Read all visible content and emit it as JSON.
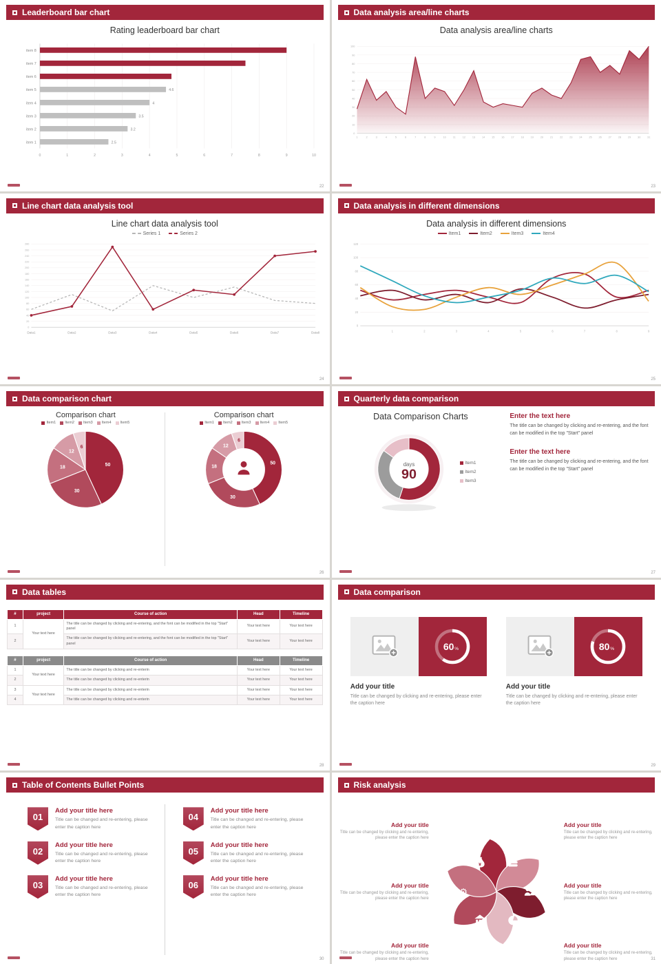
{
  "theme": {
    "accent": "#A2263B",
    "accent_dark": "#7E1D2E",
    "bar_gray": "#BFBFBF",
    "table_gray": "#8A8A8A",
    "orange": "#E8A23B",
    "teal": "#2FA8BC"
  },
  "slides": {
    "leaderboard": {
      "header": "Leaderboard bar chart",
      "page": "22",
      "chart_data": {
        "type": "bar",
        "orientation": "horizontal",
        "title": "Rating leaderboard bar chart",
        "categories": [
          "item 8",
          "item 7",
          "item 6",
          "item 5",
          "item 4",
          "item 3",
          "item 2",
          "item 1"
        ],
        "values": [
          9,
          7.5,
          4.8,
          4.6,
          4,
          3.5,
          3.2,
          2.5
        ],
        "value_labels": [
          "",
          "",
          "",
          "4.6",
          "4",
          "3.5",
          "3.2",
          "2.5"
        ],
        "colors": [
          "#A2263B",
          "#A2263B",
          "#A2263B",
          "#BFBFBF",
          "#BFBFBF",
          "#BFBFBF",
          "#BFBFBF",
          "#BFBFBF"
        ],
        "xlim": [
          0,
          10
        ],
        "xticks": [
          0,
          1,
          2,
          3,
          4,
          5,
          6,
          7,
          8,
          9,
          10
        ]
      }
    },
    "area": {
      "header": "Data analysis area/line charts",
      "page": "23",
      "chart_data": {
        "type": "area",
        "title": "Data analysis area/line charts",
        "x": [
          1,
          2,
          3,
          4,
          5,
          6,
          7,
          8,
          9,
          10,
          11,
          12,
          13,
          14,
          15,
          16,
          17,
          18,
          19,
          20,
          21,
          22,
          23,
          24,
          25,
          26,
          27,
          28,
          29,
          30,
          31
        ],
        "values": [
          28,
          62,
          38,
          48,
          30,
          22,
          88,
          40,
          52,
          48,
          32,
          50,
          72,
          36,
          30,
          34,
          32,
          30,
          46,
          52,
          44,
          40,
          58,
          85,
          88,
          70,
          78,
          68,
          95,
          85,
          100
        ],
        "ylim": [
          0,
          100
        ],
        "ytick_step": 10,
        "line_color": "#A2263B"
      }
    },
    "linechart": {
      "header": "Line chart data analysis tool",
      "page": "24",
      "chart_data": {
        "type": "line",
        "title": "Line chart data analysis tool",
        "categories": [
          "Data1",
          "Data2",
          "Data3",
          "Data4",
          "Data5",
          "Data6",
          "Data7",
          "Data8"
        ],
        "series": [
          {
            "name": "Series 1",
            "color": "#B5B5B5",
            "dashed": true,
            "markers": false,
            "values": [
              60,
              110,
              55,
              140,
              100,
              135,
              90,
              80
            ]
          },
          {
            "name": "Series 2",
            "color": "#A2263B",
            "dashed": false,
            "markers": true,
            "values": [
              40,
              70,
              270,
              60,
              125,
              110,
              240,
              255
            ]
          }
        ],
        "ylim": [
          0,
          280
        ],
        "ytick_step": 20
      }
    },
    "dimensions": {
      "header": "Data analysis in different dimensions",
      "page": "25",
      "chart_data": {
        "type": "line",
        "title": "Data analysis in different dimensions",
        "x": [
          0,
          1,
          2,
          3,
          4,
          5,
          6,
          7,
          8,
          9
        ],
        "xticks": [
          1,
          2,
          3,
          4,
          5,
          6,
          7,
          8,
          9
        ],
        "series": [
          {
            "name": "Item1",
            "color": "#A2263B",
            "values": [
              52,
              38,
              46,
              52,
              42,
              34,
              70,
              76,
              42,
              52
            ]
          },
          {
            "name": "Item2",
            "color": "#7E1D2E",
            "values": [
              44,
              52,
              38,
              46,
              34,
              54,
              42,
              26,
              38,
              46
            ]
          },
          {
            "name": "Item3",
            "color": "#E8A23B",
            "values": [
              56,
              28,
              24,
              42,
              56,
              46,
              60,
              76,
              92,
              36
            ]
          },
          {
            "name": "Item4",
            "color": "#2FA8BC",
            "values": [
              88,
              66,
              44,
              34,
              42,
              52,
              70,
              62,
              74,
              50
            ]
          }
        ],
        "ylim": [
          0,
          120
        ],
        "yticks": [
          0,
          20,
          40,
          60,
          80,
          100,
          120
        ]
      }
    },
    "comparison_pies": {
      "header": "Data comparison chart",
      "page": "26",
      "left": {
        "title": "Comparison chart"
      },
      "right": {
        "title": "Comparison chart"
      },
      "chart_data": {
        "type": "pie",
        "labels": [
          "Item1",
          "Item2",
          "Item3",
          "Item4",
          "Item5"
        ],
        "values": [
          50,
          30,
          18,
          12,
          6
        ],
        "colors": [
          "#A2263B",
          "#B14A5C",
          "#C4707F",
          "#D69BA6",
          "#EBCDD3"
        ],
        "label_colors": [
          "#fff",
          "#fff",
          "#fff",
          "#fff",
          "#A2263B"
        ]
      }
    },
    "quarterly": {
      "header": "Quarterly data comparison",
      "page": "27",
      "title": "Data Comparison Charts",
      "donut": {
        "values": [
          55,
          30,
          15
        ],
        "colors": [
          "#A2263B",
          "#9C9C9C",
          "#E7BFC8"
        ],
        "center_top": "days",
        "center_value": "90",
        "legend": [
          "Item1",
          "Item2",
          "Item3"
        ]
      },
      "blocks": [
        {
          "heading": "Enter the text here",
          "body": "The title can be changed by clicking and re-entering, and the font can be modified in the top \"Start\" panel"
        },
        {
          "heading": "Enter the text here",
          "body": "The title can be changed by clicking and re-entering, and the font can be modified in the top \"Start\" panel"
        }
      ]
    },
    "tables": {
      "header": "Data tables",
      "page": "28",
      "columns": [
        "#",
        "project",
        "Course of action",
        "Head",
        "Timeline"
      ],
      "table1": {
        "project": "Your text here",
        "rows": [
          {
            "num": "1",
            "course": "The title can be changed by clicking and re-entering, and the font can be modified in the top \"Start\" panel",
            "head": "Your text here",
            "timeline": "Your text here"
          },
          {
            "num": "2",
            "course": "The title can be changed by clicking and re-entering, and the font can be modified in the top \"Start\" panel",
            "head": "Your text here",
            "timeline": "Your text here"
          }
        ]
      },
      "table2": {
        "project_a": "Your text here",
        "project_b": "Your text here",
        "rows": [
          {
            "num": "1",
            "course": "The title can be changed by clicking and re-enterin",
            "head": "Your text here",
            "timeline": "Your text here"
          },
          {
            "num": "2",
            "course": "The title can be changed by clicking and re-enterin",
            "head": "Your text here",
            "timeline": "Your text here"
          },
          {
            "num": "3",
            "course": "The title can be changed by clicking and re-enterin",
            "head": "Your text here",
            "timeline": "Your text here"
          },
          {
            "num": "4",
            "course": "The title can be changed by clicking and re-enterin",
            "head": "Your text here",
            "timeline": "Your text here"
          }
        ]
      }
    },
    "cards": {
      "header": "Data comparison",
      "page": "29",
      "percent_suffix": "%",
      "items": [
        {
          "percent": 60,
          "title": "Add your title",
          "caption": "Title can be changed by clicking and re-entering, please enter the caption here"
        },
        {
          "percent": 80,
          "title": "Add your title",
          "caption": "Title can be changed by clicking and re-entering, please enter the caption here"
        }
      ]
    },
    "toc": {
      "header": "Table of Contents Bullet Points",
      "page": "30",
      "items": [
        {
          "num": "01",
          "title": "Add your title here",
          "caption": "Title can be changed and re-entering, please enter the caption here"
        },
        {
          "num": "02",
          "title": "Add your title here",
          "caption": "Title can be changed and re-entering, please enter the caption here"
        },
        {
          "num": "03",
          "title": "Add your title here",
          "caption": "Title can be changed and re-entering, please enter the caption here"
        },
        {
          "num": "04",
          "title": "Add your title here",
          "caption": "Title can be changed and re-entering, please enter the caption here"
        },
        {
          "num": "05",
          "title": "Add your title here",
          "caption": "Title can be changed and re-entering, please enter the caption here"
        },
        {
          "num": "06",
          "title": "Add your title here",
          "caption": "Title can be changed and re-entering, please enter the caption here"
        }
      ]
    },
    "risk": {
      "header": "Risk analysis",
      "page": "31",
      "petal_colors": [
        "#A2263B",
        "#D28A97",
        "#7E1D2E",
        "#E3B9C1",
        "#B14A5C",
        "#C4707F"
      ],
      "icons": [
        "moneybag-icon",
        "coins-icon",
        "people-icon",
        "pie-chart-icon",
        "bank-icon",
        "gear-icon"
      ],
      "left_items": [
        {
          "title": "Add your title",
          "caption": "Title can be changed by clicking and re-entering, please enter the caption here"
        },
        {
          "title": "Add your title",
          "caption": "Title can be changed by clicking and re-entering, please enter the caption here"
        },
        {
          "title": "Add your title",
          "caption": "Title can be changed by clicking and re-entering, please enter the caption here"
        }
      ],
      "right_items": [
        {
          "title": "Add your title",
          "caption": "Title can be changed by clicking and re-entering, please enter the caption here"
        },
        {
          "title": "Add your title",
          "caption": "Title can be changed by clicking and re-entering, please enter the caption here"
        },
        {
          "title": "Add your title",
          "caption": "Title can be changed by clicking and re-entering, please enter the caption here"
        }
      ]
    }
  }
}
